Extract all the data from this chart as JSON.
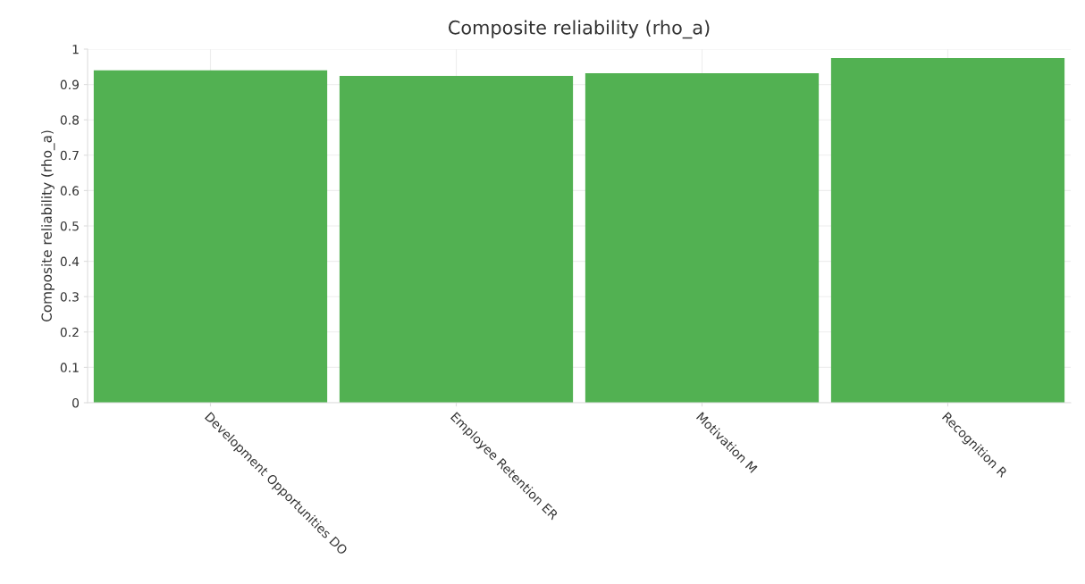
{
  "chart_data": {
    "type": "bar",
    "title": "Composite reliability (rho_a)",
    "ylabel": "Composite reliability (rho_a)",
    "categories": [
      "Development Opportunities DO",
      "Employee Retention ER",
      "Motivation M",
      "Recognition R"
    ],
    "values": [
      0.94,
      0.924,
      0.932,
      0.975
    ],
    "color": "#52b152",
    "ylim": [
      0,
      1
    ],
    "yticks": [
      0,
      0.1,
      0.2,
      0.3,
      0.4,
      0.5,
      0.6,
      0.7,
      0.8,
      0.9,
      1
    ],
    "grid": true
  }
}
